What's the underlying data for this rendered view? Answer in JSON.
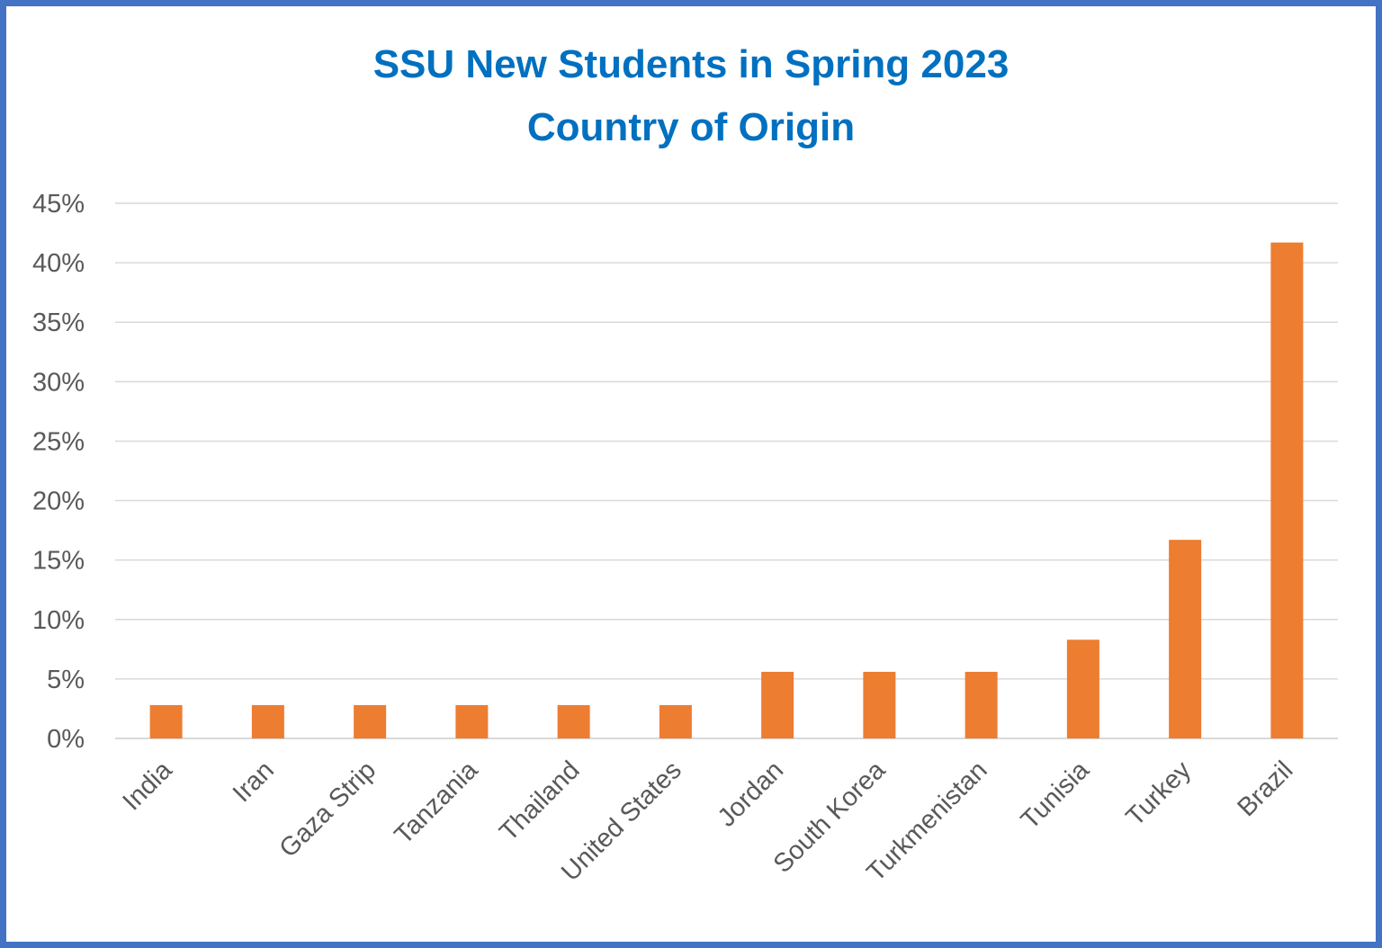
{
  "chart_data": {
    "type": "bar",
    "title_lines": [
      "SSU New Students in Spring 2023",
      "Country of Origin"
    ],
    "categories": [
      "India",
      "Iran",
      "Gaza Strip",
      "Tanzania",
      "Thailand",
      "United States",
      "Jordan",
      "South Korea",
      "Turkmenistan",
      "Tunisia",
      "Turkey",
      "Brazil"
    ],
    "values": [
      2.8,
      2.8,
      2.8,
      2.8,
      2.8,
      2.8,
      5.6,
      5.6,
      5.6,
      8.3,
      16.7,
      41.7
    ],
    "ylim": [
      0,
      45
    ],
    "yticks": [
      "0%",
      "5%",
      "10%",
      "15%",
      "20%",
      "25%",
      "30%",
      "35%",
      "40%",
      "45%"
    ],
    "ytick_values": [
      0,
      5,
      10,
      15,
      20,
      25,
      30,
      35,
      40,
      45
    ],
    "grid": true,
    "legend": "none",
    "colors": {
      "bar": "#ed7d31",
      "title": "#0070c0",
      "grid": "#d9d9d9",
      "border": "#4472c4",
      "label": "#595959"
    }
  }
}
